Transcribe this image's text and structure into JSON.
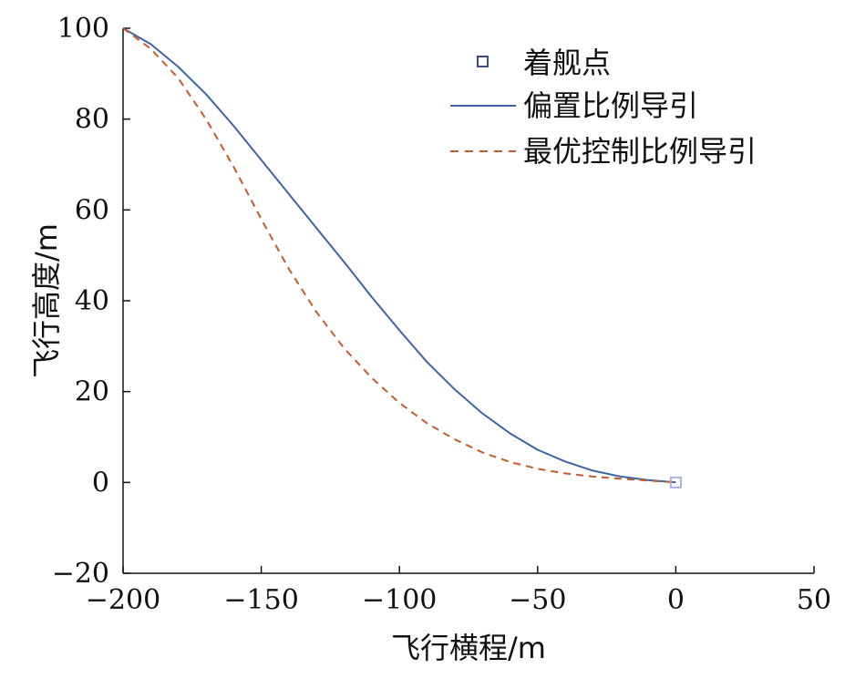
{
  "chart_data": {
    "type": "line",
    "xlabel": "飞行横程/m",
    "ylabel": "飞行高度/m",
    "xlim": [
      -200,
      50
    ],
    "ylim": [
      -20,
      100
    ],
    "xticks": [
      -200,
      -150,
      -100,
      -50,
      0,
      50
    ],
    "yticks": [
      -20,
      0,
      20,
      40,
      60,
      80,
      100
    ],
    "xtick_labels": [
      "−200",
      "−150",
      "−100",
      "−50",
      "0",
      "50"
    ],
    "ytick_labels": [
      "−20",
      "0",
      "20",
      "40",
      "60",
      "80",
      "100"
    ],
    "grid": false,
    "legend_position": "top-right",
    "series": [
      {
        "name": "着舰点",
        "style": "marker",
        "color": "#3b4a8c",
        "marker_color": "#a9b1de",
        "x": [
          0
        ],
        "y": [
          0
        ]
      },
      {
        "name": "偏置比例导引",
        "style": "solid",
        "color": "#3e63a8",
        "x": [
          -200,
          -190,
          -180,
          -170,
          -160,
          -150,
          -140,
          -130,
          -120,
          -110,
          -100,
          -90,
          -80,
          -70,
          -60,
          -50,
          -40,
          -35,
          -30,
          -20,
          -10,
          0
        ],
        "y": [
          100,
          96.5,
          91.5,
          85.5,
          78.5,
          71,
          63.5,
          56,
          48.5,
          40.8,
          33.5,
          26.5,
          20.5,
          15.2,
          10.8,
          7.2,
          4.6,
          3.6,
          2.6,
          1.3,
          0.5,
          0
        ]
      },
      {
        "name": "最优控制比例导引",
        "style": "dashed",
        "color": "#c55a2b",
        "x": [
          -200,
          -190,
          -180,
          -170,
          -160,
          -150,
          -140,
          -130,
          -120,
          -110,
          -100,
          -90,
          -80,
          -70,
          -60,
          -50,
          -40,
          -30,
          -20,
          -10,
          0
        ],
        "y": [
          100,
          95.5,
          89,
          80,
          69.5,
          58,
          47,
          37.5,
          29.5,
          23,
          17.5,
          13,
          9.5,
          6.6,
          4.5,
          3,
          2,
          1.3,
          0.8,
          0.4,
          0
        ]
      }
    ]
  }
}
